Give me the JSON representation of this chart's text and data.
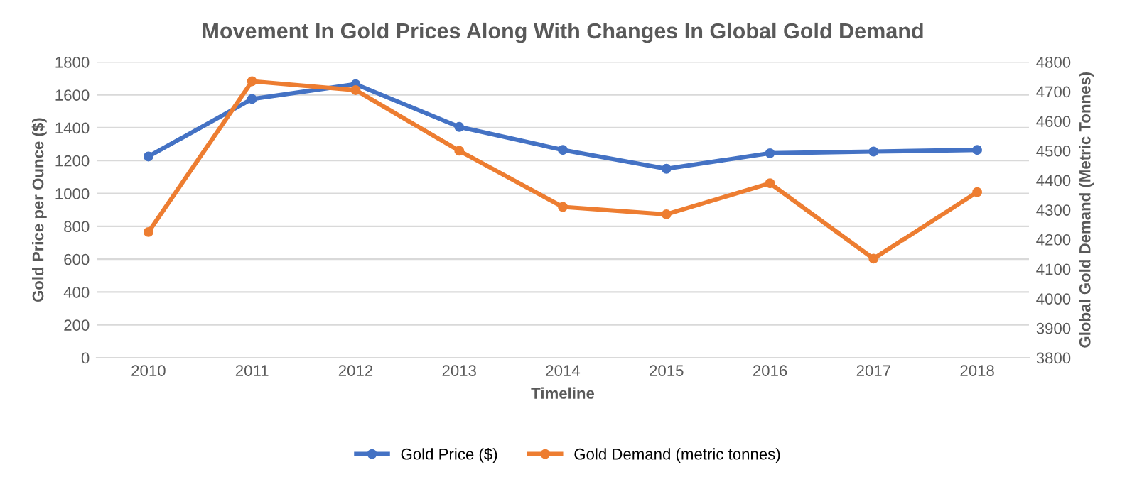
{
  "chart_data": {
    "type": "line",
    "title": "Movement In Gold Prices Along With Changes In Global Gold Demand",
    "xlabel": "Timeline",
    "ylabel": "Gold Price per Ounce ($)",
    "y2label": "Global Gold Demand (Metric Tonnes)",
    "categories": [
      "2010",
      "2011",
      "2012",
      "2013",
      "2014",
      "2015",
      "2016",
      "2017",
      "2018"
    ],
    "series": [
      {
        "name": "Gold Price ($)",
        "color": "#4472c4",
        "values": [
          1225,
          1575,
          1665,
          1405,
          1265,
          1150,
          1245,
          1255,
          1265
        ]
      },
      {
        "name": "Gold Demand (metric tonnes)",
        "color": "#ed7d31",
        "axis": "y2",
        "values": [
          4225,
          4735,
          4705,
          4500,
          4310,
          4285,
          4390,
          4135,
          4360
        ]
      }
    ],
    "ylim": [
      0,
      1800
    ],
    "yticks": [
      0,
      200,
      400,
      600,
      800,
      1000,
      1200,
      1400,
      1600,
      1800
    ],
    "y2lim": [
      3800,
      4800
    ],
    "y2ticks": [
      3800,
      3900,
      4000,
      4100,
      4200,
      4300,
      4400,
      4500,
      4600,
      4700,
      4800
    ],
    "grid": "y",
    "legend": "bottom",
    "marker": "circle",
    "line_style": "solid"
  }
}
